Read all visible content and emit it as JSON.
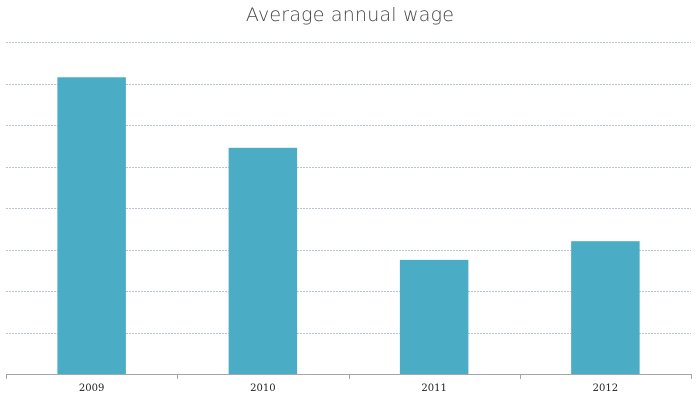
{
  "chart_data": {
    "type": "bar",
    "title": "Average annual wage",
    "xlabel": "",
    "ylabel": "",
    "categories": [
      "2009",
      "2010",
      "2011",
      "2012"
    ],
    "values": [
      71.5,
      54.5,
      27.5,
      32
    ],
    "ylim": [
      0,
      80
    ],
    "y_gridline_step": 10,
    "y_tick_labels_shown": false,
    "grid": true,
    "legend": "none",
    "colors": {
      "bar": "#4bacc6",
      "grid": "#b7c4cf",
      "axis": "#a6a6a6"
    }
  }
}
